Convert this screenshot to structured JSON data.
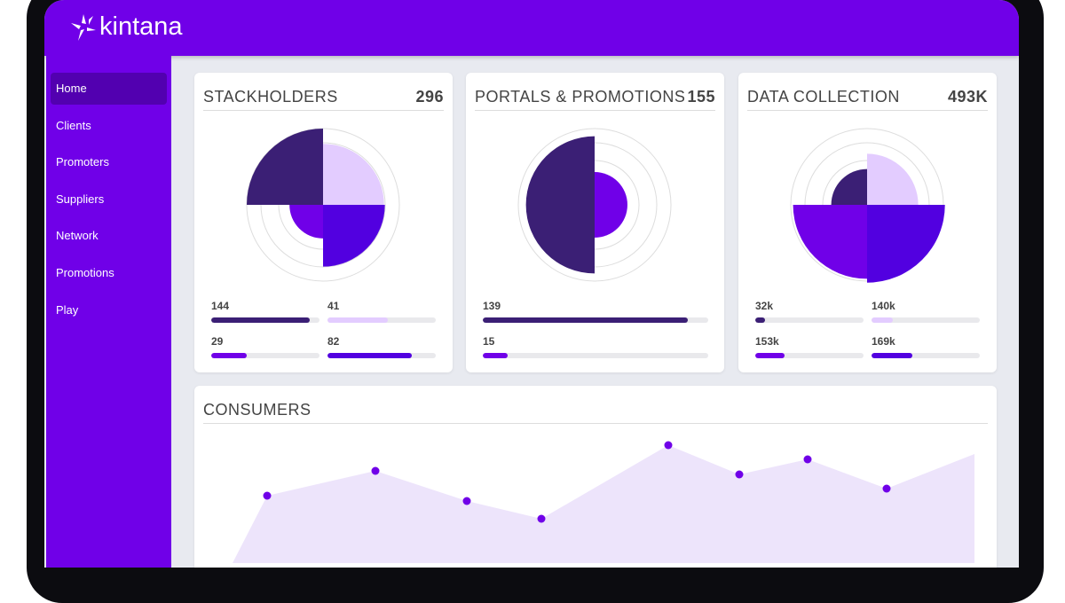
{
  "app": {
    "logo_text": "kintana"
  },
  "sidebar": {
    "items": [
      {
        "label": "Home",
        "active": true
      },
      {
        "label": "Clients"
      },
      {
        "label": "Promoters"
      },
      {
        "label": "Suppliers"
      },
      {
        "label": "Network"
      },
      {
        "label": "Promotions"
      },
      {
        "label": "Play"
      }
    ]
  },
  "colors": {
    "brand": "#7000e8",
    "dark": "#3b1f75",
    "light": "#e3ccff",
    "violet": "#7000e8",
    "indigo": "#5200e0"
  },
  "cards": [
    {
      "title": "STACKHOLDERS",
      "total": "296",
      "wedges": [
        {
          "color": "dark",
          "level": 1.0
        },
        {
          "color": "light",
          "level": 0.8
        },
        {
          "color": "indigo",
          "level": 0.81
        },
        {
          "color": "violet",
          "level": 0.44
        }
      ],
      "stats": [
        {
          "label": "144",
          "color": "dark",
          "fill": 0.91
        },
        {
          "label": "41",
          "color": "light",
          "fill": 0.56
        },
        {
          "label": "29",
          "color": "violet",
          "fill": 0.33
        },
        {
          "label": "82",
          "color": "indigo",
          "fill": 0.78
        }
      ]
    },
    {
      "title": "PORTALS & PROMOTIONS",
      "total": "155",
      "wedges": [
        {
          "color": "violet",
          "level": 0.43,
          "half": "right"
        },
        {
          "color": "dark",
          "level": 0.9,
          "half": "left"
        }
      ],
      "stats": [
        {
          "label": "139",
          "color": "dark",
          "fill": 0.91
        },
        {
          "label": "15",
          "color": "violet",
          "fill": 0.11
        }
      ]
    },
    {
      "title": "DATA COLLECTION",
      "total": "493K",
      "wedges": [
        {
          "color": "dark",
          "level": 0.47
        },
        {
          "color": "light",
          "level": 0.67
        },
        {
          "color": "indigo",
          "level": 1.02
        },
        {
          "color": "violet",
          "level": 0.97
        }
      ],
      "stats": [
        {
          "label": "32k",
          "color": "dark",
          "fill": 0.09
        },
        {
          "label": "140k",
          "color": "light",
          "fill": 0.2
        },
        {
          "label": "153k",
          "color": "violet",
          "fill": 0.27
        },
        {
          "label": "169k",
          "color": "indigo",
          "fill": 0.38
        }
      ]
    }
  ],
  "consumers": {
    "title": "CONSUMERS",
    "chart_data": {
      "type": "area",
      "values": [
        71,
        99,
        65,
        45,
        128,
        95,
        112,
        79
      ],
      "end_value": 118
    }
  }
}
